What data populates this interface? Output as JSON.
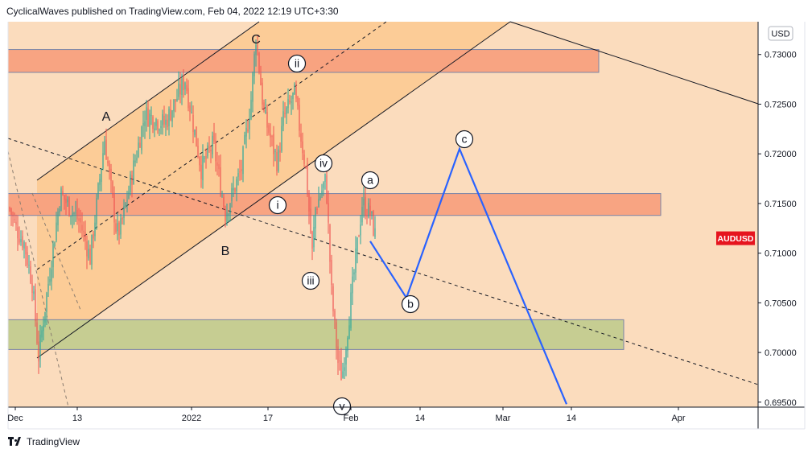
{
  "header": {
    "text": "CyclicalWaves published on TradingView.com, Feb 04, 2022 12:19 UTC+3:30"
  },
  "footer": {
    "brand": "TradingView",
    "logo_icon": "tradingview-logo-icon"
  },
  "chart_data": {
    "type": "candlestick",
    "symbol_badge": "AUDUSD",
    "currency_label": "USD",
    "last_price": 0.7115,
    "ylim": [
      0.6945,
      0.7333
    ],
    "y_ticks": [
      0.73,
      0.725,
      0.72,
      0.715,
      0.71,
      0.705,
      0.7,
      0.695
    ],
    "y_tick_labels": [
      "0.73000",
      "0.72500",
      "0.72000",
      "0.71500",
      "0.71000",
      "0.70500",
      "0.70000",
      "0.69500"
    ],
    "x_tick_labels": [
      "Dec",
      "13",
      "2022",
      "17",
      "Feb",
      "14",
      "Mar",
      "14",
      "Apr"
    ],
    "colors": {
      "background": "#fbdcbd",
      "channel_fill": "#fbc991",
      "up": "#26a69a",
      "down": "#ef5350",
      "projection": "#2962ff",
      "badge": "#e6141e"
    },
    "zones": [
      {
        "name": "upper-resistance-zone",
        "low": 0.7282,
        "high": 0.7305,
        "color": "#f8a07e"
      },
      {
        "name": "middle-resistance-zone",
        "low": 0.7138,
        "high": 0.716,
        "color": "#f8a07e"
      },
      {
        "name": "support-zone",
        "low": 0.7003,
        "high": 0.7033,
        "color": "#c3cb8f"
      }
    ],
    "wave_labels": [
      {
        "text": "A",
        "style": "plain"
      },
      {
        "text": "B",
        "style": "plain"
      },
      {
        "text": "C",
        "style": "plain"
      },
      {
        "text": "i",
        "style": "circled"
      },
      {
        "text": "ii",
        "style": "circled"
      },
      {
        "text": "iii",
        "style": "circled"
      },
      {
        "text": "iv",
        "style": "circled"
      },
      {
        "text": "a",
        "style": "circled"
      },
      {
        "text": "b",
        "style": "circled"
      },
      {
        "text": "c",
        "style": "circled"
      },
      {
        "text": "v",
        "style": "circled"
      }
    ],
    "projection_path": [
      0.7112,
      0.7055,
      0.7205,
      0.6948
    ]
  }
}
